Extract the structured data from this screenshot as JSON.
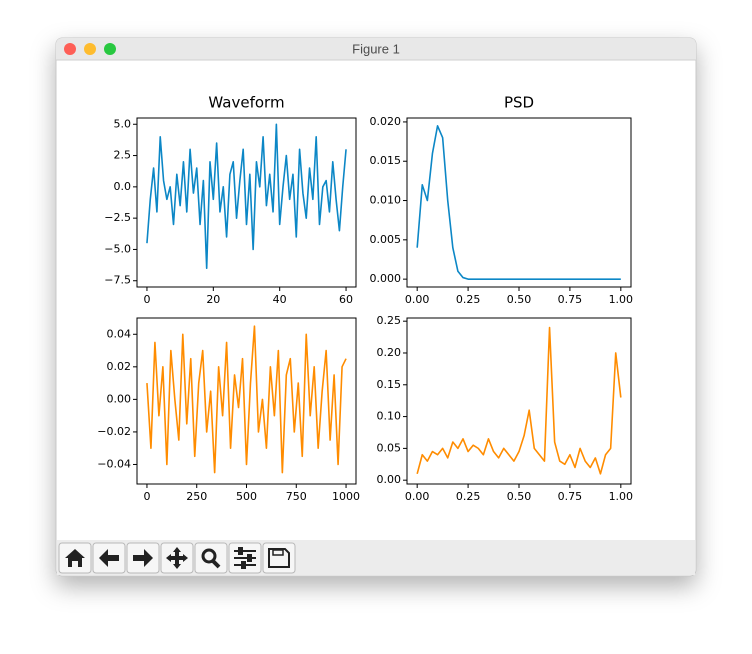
{
  "window": {
    "title": "Figure 1"
  },
  "chart_data": [
    {
      "type": "line",
      "title": "Waveform",
      "color": "#0c87c6",
      "x": [
        0,
        1,
        2,
        3,
        4,
        5,
        6,
        7,
        8,
        9,
        10,
        11,
        12,
        13,
        14,
        15,
        16,
        17,
        18,
        19,
        20,
        21,
        22,
        23,
        24,
        25,
        26,
        27,
        28,
        29,
        30,
        31,
        32,
        33,
        34,
        35,
        36,
        37,
        38,
        39,
        40,
        41,
        42,
        43,
        44,
        45,
        46,
        47,
        48,
        49,
        50,
        51,
        52,
        53,
        54,
        55,
        56,
        57,
        58,
        59,
        60
      ],
      "values": [
        -4.5,
        -1,
        1.5,
        -2,
        4,
        0.5,
        -1,
        0,
        -3,
        1,
        -1.5,
        2,
        -2,
        3,
        -0.5,
        1.5,
        -3,
        0.5,
        -6.5,
        2,
        -1,
        3.5,
        -2,
        0,
        -4,
        1,
        2,
        -2.5,
        0.5,
        3,
        -3,
        1,
        -5,
        2,
        0,
        4,
        -1.5,
        1,
        -2,
        5,
        -3,
        0,
        2.5,
        -1,
        1,
        -4,
        3,
        -0.5,
        -2.5,
        1.5,
        -1,
        4,
        -3,
        0,
        0.5,
        -2,
        2,
        -1,
        -3.5,
        0,
        3
      ],
      "xlim": [
        -3,
        63
      ],
      "xticks": [
        0,
        20,
        40,
        60
      ],
      "ylim": [
        -8,
        5.5
      ],
      "yticks": [
        {
          "value": -7.5,
          "label": "−7.5"
        },
        {
          "value": -5,
          "label": "−5.0"
        },
        {
          "value": -2.5,
          "label": "−2.5"
        },
        {
          "value": 0,
          "label": "0.0"
        },
        2.5,
        {
          "value": 5,
          "label": "5.0"
        }
      ]
    },
    {
      "type": "line",
      "title": "PSD",
      "color": "#0c87c6",
      "x": [
        0,
        0.025,
        0.05,
        0.075,
        0.1,
        0.125,
        0.15,
        0.175,
        0.2,
        0.225,
        0.25,
        0.275,
        0.3,
        0.325,
        0.35,
        0.375,
        0.4,
        0.425,
        0.45,
        0.475,
        0.5,
        0.525,
        0.55,
        0.575,
        0.6,
        0.625,
        0.65,
        0.675,
        0.7,
        0.725,
        0.75,
        0.775,
        0.8,
        0.825,
        0.85,
        0.875,
        0.9,
        0.925,
        0.95,
        0.975,
        1
      ],
      "values": [
        0.004,
        0.012,
        0.01,
        0.016,
        0.0195,
        0.018,
        0.01,
        0.004,
        0.001,
        0.0002,
        0,
        0,
        0,
        0,
        0,
        0,
        0,
        0,
        0,
        0,
        0,
        0,
        0,
        0,
        0,
        0,
        0,
        0,
        0,
        0,
        0,
        0,
        0,
        0,
        0,
        0,
        0,
        0,
        0,
        0,
        0
      ],
      "xlim": [
        -0.05,
        1.05
      ],
      "xticks": [
        {
          "value": 0,
          "label": "0.00"
        },
        0.25,
        {
          "value": 0.5,
          "label": "0.50"
        },
        0.75,
        {
          "value": 1,
          "label": "1.00"
        }
      ],
      "ylim": [
        -0.001,
        0.0205
      ],
      "yticks": [
        {
          "value": 0,
          "label": "0.000"
        },
        0.005,
        {
          "value": 0.01,
          "label": "0.010"
        },
        0.015,
        {
          "value": 0.02,
          "label": "0.020"
        }
      ]
    },
    {
      "type": "line",
      "color": "#ff8c00",
      "x": [
        0,
        20,
        40,
        60,
        80,
        100,
        120,
        140,
        160,
        180,
        200,
        220,
        240,
        260,
        280,
        300,
        320,
        340,
        360,
        380,
        400,
        420,
        440,
        460,
        480,
        500,
        520,
        540,
        560,
        580,
        600,
        620,
        640,
        660,
        680,
        700,
        720,
        740,
        760,
        780,
        800,
        820,
        840,
        860,
        880,
        900,
        920,
        940,
        960,
        980,
        1000
      ],
      "values": [
        0.01,
        -0.03,
        0.035,
        -0.01,
        0.02,
        -0.04,
        0.03,
        0,
        -0.025,
        0.04,
        -0.015,
        0.025,
        -0.035,
        0.01,
        0.03,
        -0.02,
        0.005,
        -0.045,
        0.02,
        -0.01,
        0.035,
        -0.03,
        0.015,
        -0.005,
        0.025,
        -0.04,
        0.01,
        0.045,
        -0.02,
        0,
        -0.03,
        0.02,
        -0.01,
        0.03,
        -0.045,
        0.015,
        0.025,
        -0.02,
        0.01,
        -0.035,
        0.04,
        -0.01,
        0.02,
        -0.03,
        0.005,
        0.03,
        -0.025,
        0.015,
        -0.04,
        0.02,
        0.025
      ],
      "xlim": [
        -50,
        1050
      ],
      "xticks": [
        0,
        250,
        500,
        750,
        1000
      ],
      "ylim": [
        -0.052,
        0.05
      ],
      "yticks": [
        {
          "value": -0.04,
          "label": "−0.04"
        },
        {
          "value": -0.02,
          "label": "−0.02"
        },
        {
          "value": 0,
          "label": "0.00"
        },
        0.02,
        0.04
      ]
    },
    {
      "type": "line",
      "color": "#ff8c00",
      "x": [
        0,
        0.025,
        0.05,
        0.075,
        0.1,
        0.125,
        0.15,
        0.175,
        0.2,
        0.225,
        0.25,
        0.275,
        0.3,
        0.325,
        0.35,
        0.375,
        0.4,
        0.425,
        0.45,
        0.475,
        0.5,
        0.525,
        0.55,
        0.575,
        0.6,
        0.625,
        0.65,
        0.675,
        0.7,
        0.725,
        0.75,
        0.775,
        0.8,
        0.825,
        0.85,
        0.875,
        0.9,
        0.925,
        0.95,
        0.975,
        1
      ],
      "values": [
        0.01,
        0.04,
        0.03,
        0.045,
        0.04,
        0.05,
        0.035,
        0.06,
        0.05,
        0.065,
        0.045,
        0.055,
        0.05,
        0.04,
        0.065,
        0.045,
        0.035,
        0.05,
        0.04,
        0.03,
        0.045,
        0.07,
        0.11,
        0.05,
        0.04,
        0.03,
        0.24,
        0.06,
        0.03,
        0.025,
        0.04,
        0.02,
        0.05,
        0.03,
        0.02,
        0.035,
        0.01,
        0.04,
        0.05,
        0.2,
        0.13
      ],
      "xlim": [
        -0.05,
        1.05
      ],
      "xticks": [
        {
          "value": 0,
          "label": "0.00"
        },
        0.25,
        {
          "value": 0.5,
          "label": "0.50"
        },
        0.75,
        {
          "value": 1,
          "label": "1.00"
        }
      ],
      "ylim": [
        -0.006,
        0.255
      ],
      "yticks": [
        {
          "value": 0,
          "label": "0.00"
        },
        0.05,
        {
          "value": 0.1,
          "label": "0.10"
        },
        0.15,
        {
          "value": 0.2,
          "label": "0.20"
        },
        0.25
      ]
    }
  ]
}
